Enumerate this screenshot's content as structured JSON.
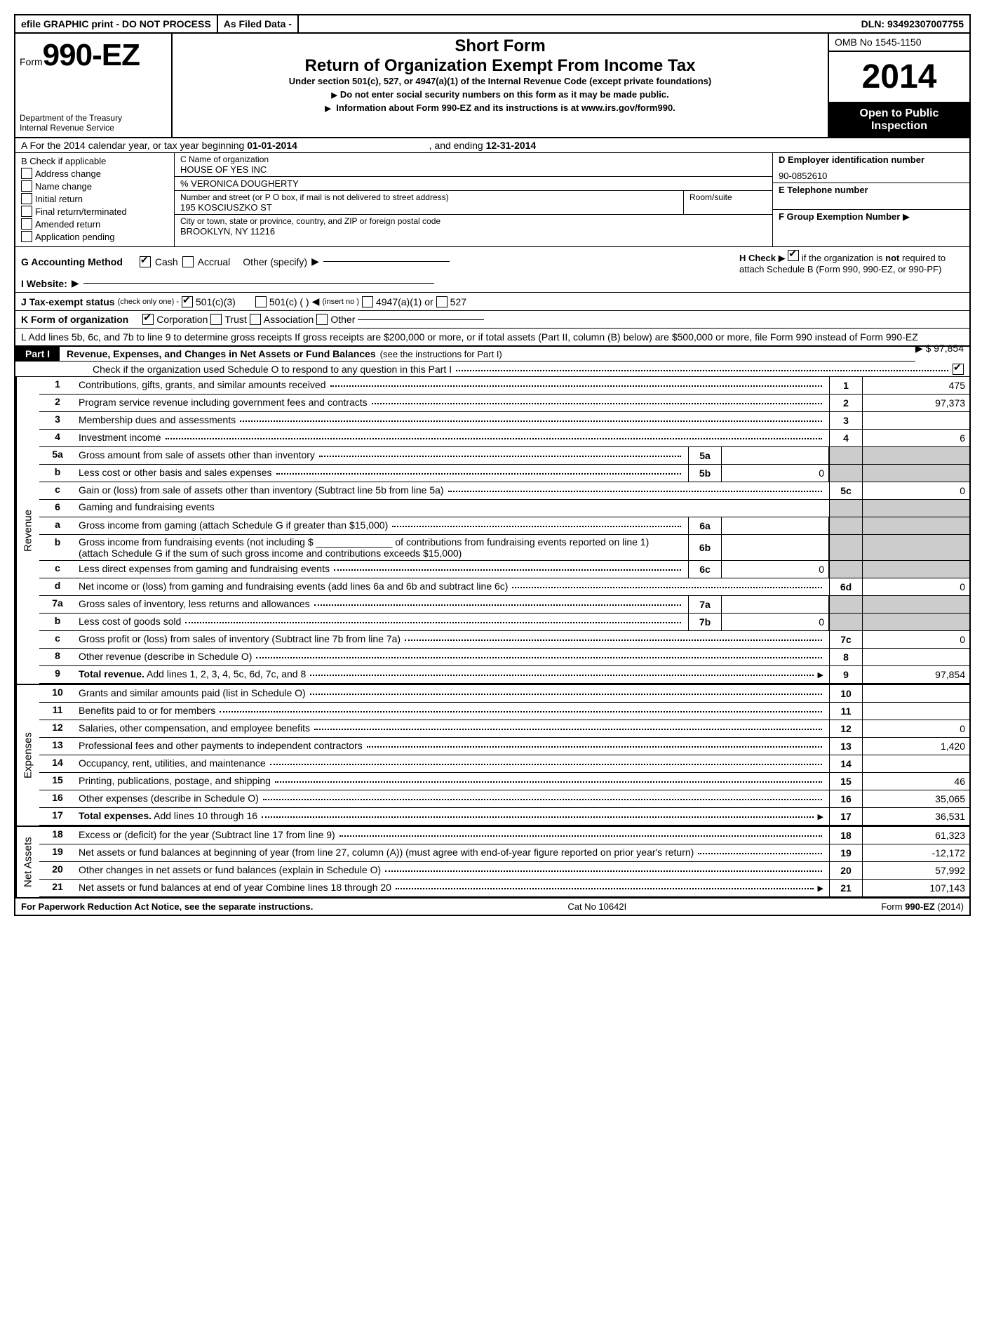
{
  "topbar": {
    "efile": "efile GRAPHIC print - DO NOT PROCESS",
    "asfiled": "As Filed Data -",
    "dln": "DLN: 93492307007755"
  },
  "header": {
    "form_prefix": "Form",
    "form_number": "990-EZ",
    "dept1": "Department of the Treasury",
    "dept2": "Internal Revenue Service",
    "short_form": "Short Form",
    "title": "Return of Organization Exempt From Income Tax",
    "subtitle": "Under section 501(c), 527, or 4947(a)(1) of the Internal Revenue Code (except private foundations)",
    "warn": "Do not enter social security numbers on this form as it may be made public.",
    "info": "Information about Form 990-EZ and its instructions is at ",
    "info_link": "www.irs.gov/form990",
    "info_suffix": ".",
    "omb": "OMB No 1545-1150",
    "year": "2014",
    "open1": "Open to Public",
    "open2": "Inspection"
  },
  "rowA": {
    "prefix": "A  For the 2014 calendar year, or tax year beginning ",
    "begin": "01-01-2014",
    "mid": ", and ending ",
    "end": "12-31-2014"
  },
  "colB": {
    "title": "B  Check if applicable",
    "items": [
      "Address change",
      "Name change",
      "Initial return",
      "Final return/terminated",
      "Amended return",
      "Application pending"
    ]
  },
  "colC": {
    "name_label": "C Name of organization",
    "name": "HOUSE OF YES INC",
    "care_label": "% VERONICA DOUGHERTY",
    "street_label": "Number and street (or P O box, if mail is not delivered to street address)",
    "room_label": "Room/suite",
    "street": "195 KOSCIUSZKO ST",
    "city_label": "City or town, state or province, country, and ZIP or foreign postal code",
    "city": "BROOKLYN, NY  11216"
  },
  "colD": {
    "ein_label": "D Employer identification number",
    "ein": "90-0852610",
    "tel_label": "E Telephone number",
    "group_label": "F Group Exemption Number"
  },
  "rowG": {
    "label": "G Accounting Method",
    "cash": "Cash",
    "accrual": "Accrual",
    "other": "Other (specify)"
  },
  "rowH": {
    "text1": "H  Check",
    "text2": "if the organization is",
    "not": "not",
    "text3": "required to attach Schedule B (Form 990, 990-EZ, or 990-PF)"
  },
  "rowI": "I Website:",
  "rowJ": {
    "label": "J Tax-exempt status",
    "hint": "(check only one) -",
    "opt1": "501(c)(3)",
    "opt2": "501(c) (   )",
    "insert": "(insert no )",
    "opt3": "4947(a)(1) or",
    "opt4": "527"
  },
  "rowK": {
    "label": "K Form of organization",
    "opts": [
      "Corporation",
      "Trust",
      "Association",
      "Other"
    ]
  },
  "rowL": {
    "text": "L Add lines 5b, 6c, and 7b to line 9 to determine gross receipts  If gross receipts are $200,000 or more, or if total assets (Part II, column (B) below) are $500,000 or more, file Form 990 instead of Form 990-EZ",
    "amount": "$ 97,854"
  },
  "part1": {
    "label": "Part I",
    "title": "Revenue, Expenses, and Changes in Net Assets or Fund Balances",
    "hint": "(see the instructions for Part I)",
    "sub": "Check if the organization used Schedule O to respond to any question in this Part I"
  },
  "revenue_label": "Revenue",
  "expenses_label": "Expenses",
  "netassets_label": "Net Assets",
  "lines": {
    "l1": {
      "n": "1",
      "d": "Contributions, gifts, grants, and similar amounts received",
      "r": "1",
      "v": "475"
    },
    "l2": {
      "n": "2",
      "d": "Program service revenue including government fees and contracts",
      "r": "2",
      "v": "97,373"
    },
    "l3": {
      "n": "3",
      "d": "Membership dues and assessments",
      "r": "3",
      "v": ""
    },
    "l4": {
      "n": "4",
      "d": "Investment income",
      "r": "4",
      "v": "6"
    },
    "l5a": {
      "n": "5a",
      "d": "Gross amount from sale of assets other than inventory",
      "sn": "5a",
      "sv": ""
    },
    "l5b": {
      "n": "b",
      "d": "Less  cost or other basis and sales expenses",
      "sn": "5b",
      "sv": "0"
    },
    "l5c": {
      "n": "c",
      "d": "Gain or (loss) from sale of assets other than inventory (Subtract line 5b from line 5a)",
      "r": "5c",
      "v": "0"
    },
    "l6": {
      "n": "6",
      "d": "Gaming and fundraising events"
    },
    "l6a": {
      "n": "a",
      "d": "Gross income from gaming (attach Schedule G if greater than $15,000)",
      "sn": "6a",
      "sv": ""
    },
    "l6b": {
      "n": "b",
      "d": "Gross income from fundraising events (not including $ ______________ of contributions from fundraising events reported on line 1) (attach Schedule G if the sum of such gross income and contributions exceeds $15,000)",
      "sn": "6b",
      "sv": ""
    },
    "l6c": {
      "n": "c",
      "d": "Less  direct expenses from gaming and fundraising events",
      "sn": "6c",
      "sv": "0"
    },
    "l6d": {
      "n": "d",
      "d": "Net income or (loss) from gaming and fundraising events (add lines 6a and 6b and subtract line 6c)",
      "r": "6d",
      "v": "0"
    },
    "l7a": {
      "n": "7a",
      "d": "Gross sales of inventory, less returns and allowances",
      "sn": "7a",
      "sv": ""
    },
    "l7b": {
      "n": "b",
      "d": "Less  cost of goods sold",
      "sn": "7b",
      "sv": "0"
    },
    "l7c": {
      "n": "c",
      "d": "Gross profit or (loss) from sales of inventory (Subtract line 7b from line 7a)",
      "r": "7c",
      "v": "0"
    },
    "l8": {
      "n": "8",
      "d": "Other revenue (describe in Schedule O)",
      "r": "8",
      "v": ""
    },
    "l9": {
      "n": "9",
      "d": "Total revenue. Add lines 1, 2, 3, 4, 5c, 6d, 7c, and 8",
      "r": "9",
      "v": "97,854",
      "bold": true
    },
    "l10": {
      "n": "10",
      "d": "Grants and similar amounts paid (list in Schedule O)",
      "r": "10",
      "v": ""
    },
    "l11": {
      "n": "11",
      "d": "Benefits paid to or for members",
      "r": "11",
      "v": ""
    },
    "l12": {
      "n": "12",
      "d": "Salaries, other compensation, and employee benefits",
      "r": "12",
      "v": "0"
    },
    "l13": {
      "n": "13",
      "d": "Professional fees and other payments to independent contractors",
      "r": "13",
      "v": "1,420"
    },
    "l14": {
      "n": "14",
      "d": "Occupancy, rent, utilities, and maintenance",
      "r": "14",
      "v": ""
    },
    "l15": {
      "n": "15",
      "d": "Printing, publications, postage, and shipping",
      "r": "15",
      "v": "46"
    },
    "l16": {
      "n": "16",
      "d": "Other expenses (describe in Schedule O)",
      "r": "16",
      "v": "35,065"
    },
    "l17": {
      "n": "17",
      "d": "Total expenses. Add lines 10 through 16",
      "r": "17",
      "v": "36,531",
      "bold": true
    },
    "l18": {
      "n": "18",
      "d": "Excess or (deficit) for the year (Subtract line 17 from line 9)",
      "r": "18",
      "v": "61,323"
    },
    "l19": {
      "n": "19",
      "d": "Net assets or fund balances at beginning of year (from line 27, column (A)) (must agree with end-of-year figure reported on prior year's return)",
      "r": "19",
      "v": "-12,172"
    },
    "l20": {
      "n": "20",
      "d": "Other changes in net assets or fund balances (explain in Schedule O)",
      "r": "20",
      "v": "57,992"
    },
    "l21": {
      "n": "21",
      "d": "Net assets or fund balances at end of year  Combine lines 18 through 20",
      "r": "21",
      "v": "107,143"
    }
  },
  "footer": {
    "left": "For Paperwork Reduction Act Notice, see the separate instructions.",
    "center": "Cat No  10642I",
    "right_prefix": "Form ",
    "right_form": "990-EZ",
    "right_suffix": " (2014)"
  }
}
